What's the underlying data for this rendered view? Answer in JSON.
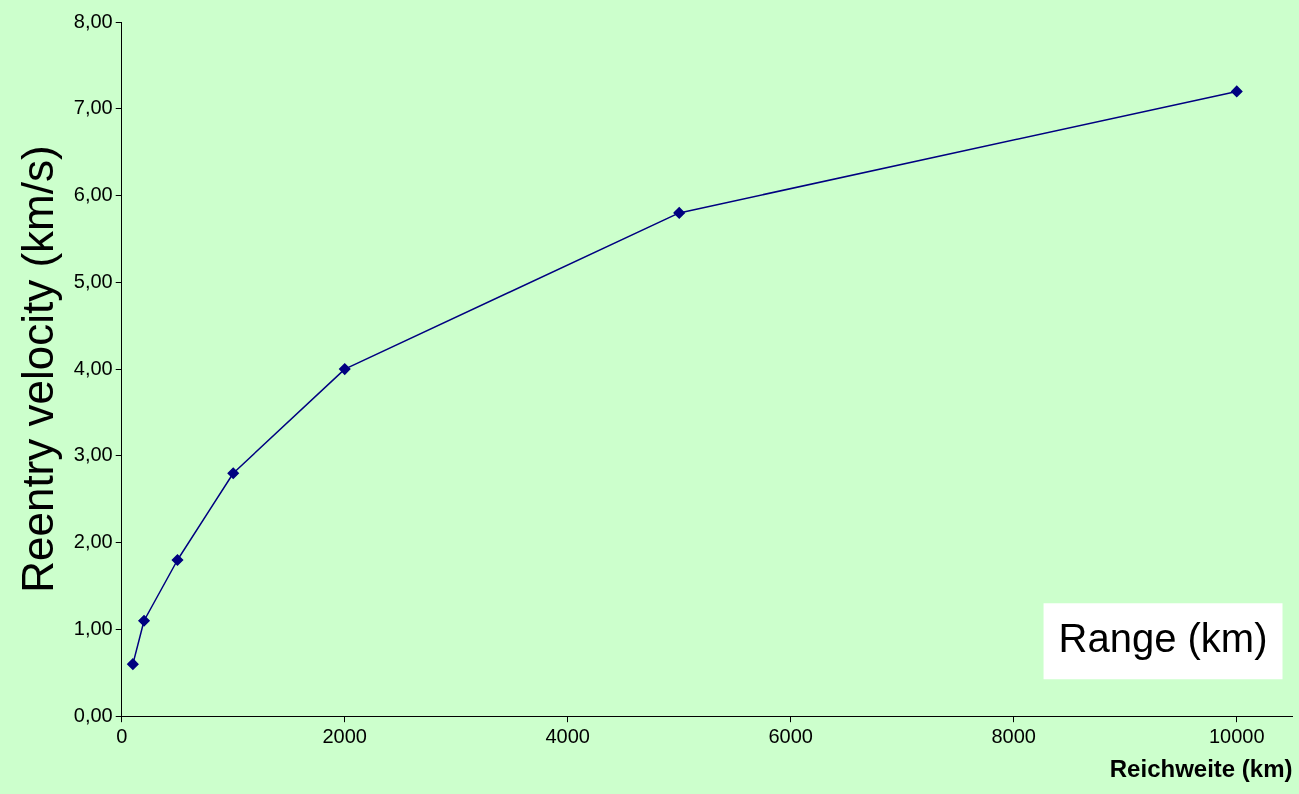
{
  "chart_data": {
    "type": "line",
    "xlabel": "Reichweite (km)",
    "ylabel": "Reentry velocity (km/s)",
    "annotations": [
      "Range (km)"
    ],
    "x": [
      100,
      200,
      500,
      1000,
      2000,
      5000,
      10000
    ],
    "series": [
      {
        "color": "#000080",
        "values": [
          0.6,
          1.1,
          1.8,
          2.8,
          4.0,
          5.8,
          7.2
        ]
      }
    ],
    "xlim": [
      0,
      10500
    ],
    "xticks": [
      0,
      2000,
      4000,
      6000,
      8000,
      10000
    ],
    "ylim": [
      0,
      8
    ],
    "yticks": [
      {
        "value": 0,
        "label": "0,00"
      },
      {
        "value": 1,
        "label": "1,00"
      },
      {
        "value": 2,
        "label": "2,00"
      },
      {
        "value": 3,
        "label": "3,00"
      },
      {
        "value": 4,
        "label": "4,00"
      },
      {
        "value": 5,
        "label": "5,00"
      },
      {
        "value": 6,
        "label": "6,00"
      },
      {
        "value": 7,
        "label": "7,00"
      },
      {
        "value": 8,
        "label": "8,00"
      }
    ],
    "grid": false,
    "legend": false,
    "marker": "diamond",
    "line_style": "solid"
  }
}
